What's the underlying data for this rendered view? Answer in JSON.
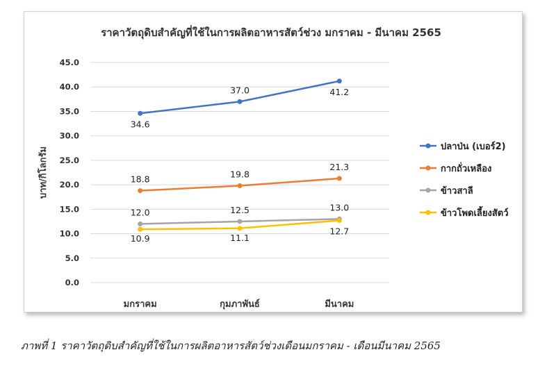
{
  "chart_data": {
    "type": "line",
    "title": "ราคาวัตถุดิบสำคัญที่ใช้ในการผลิตอาหารสัตว์ช่วง มกราคม - มีนาคม 2565",
    "xlabel": "",
    "ylabel": "บาท/กิโลกรัม",
    "categories": [
      "มกราคม",
      "กุมภาพันธ์",
      "มีนาคม"
    ],
    "ylim": [
      0,
      45
    ],
    "yticks": [
      "0.0",
      "5.0",
      "10.0",
      "15.0",
      "20.0",
      "25.0",
      "30.0",
      "35.0",
      "40.0",
      "45.0"
    ],
    "grid": true,
    "legend_position": "right",
    "series": [
      {
        "name": "ปลาป่น (เบอร์2)",
        "color": "#4472C4",
        "values": [
          34.6,
          37.0,
          41.2
        ],
        "labels": [
          "34.6",
          "37.0",
          "41.2"
        ]
      },
      {
        "name": "กากถั่วเหลือง",
        "color": "#ED7D31",
        "values": [
          18.8,
          19.8,
          21.3
        ],
        "labels": [
          "18.8",
          "19.8",
          "21.3"
        ]
      },
      {
        "name": "ข้าวสาลี",
        "color": "#A5A5A5",
        "values": [
          12.0,
          12.5,
          13.0
        ],
        "labels": [
          "12.0",
          "12.5",
          "13.0"
        ]
      },
      {
        "name": "ข้าวโพดเลี้ยงสัตว์",
        "color": "#FFC000",
        "values": [
          10.9,
          11.1,
          12.7
        ],
        "labels": [
          "10.9",
          "11.1",
          "12.7"
        ]
      }
    ]
  },
  "caption": "ภาพที่ 1 ราคาวัตถุดิบสำคัญที่ใช้ในการผลิตอาหารสัตว์ช่วงเดือนมกราคม - เดือนมีนาคม 2565"
}
